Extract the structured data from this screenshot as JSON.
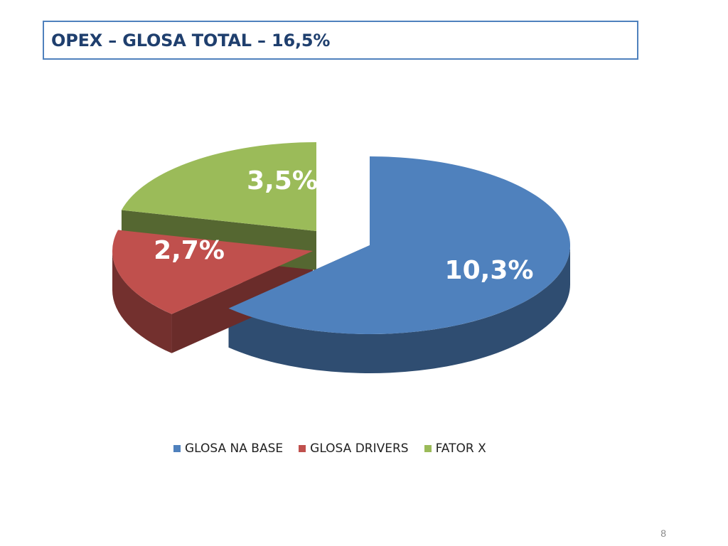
{
  "slide": {
    "title": "OPEX – GLOSA TOTAL – 16,5%",
    "page_number": "8"
  },
  "chart_data": {
    "type": "pie",
    "title": "",
    "categories": [
      "GLOSA NA BASE",
      "GLOSA DRIVERS",
      "FATOR X"
    ],
    "values": [
      10.3,
      2.7,
      3.5
    ],
    "labels": [
      "10,3%",
      "2,7%",
      "3,5%"
    ],
    "colors": [
      "#4f81bd",
      "#c0504d",
      "#9bbb59"
    ],
    "legend_position": "bottom",
    "style": "3d-exploded"
  }
}
